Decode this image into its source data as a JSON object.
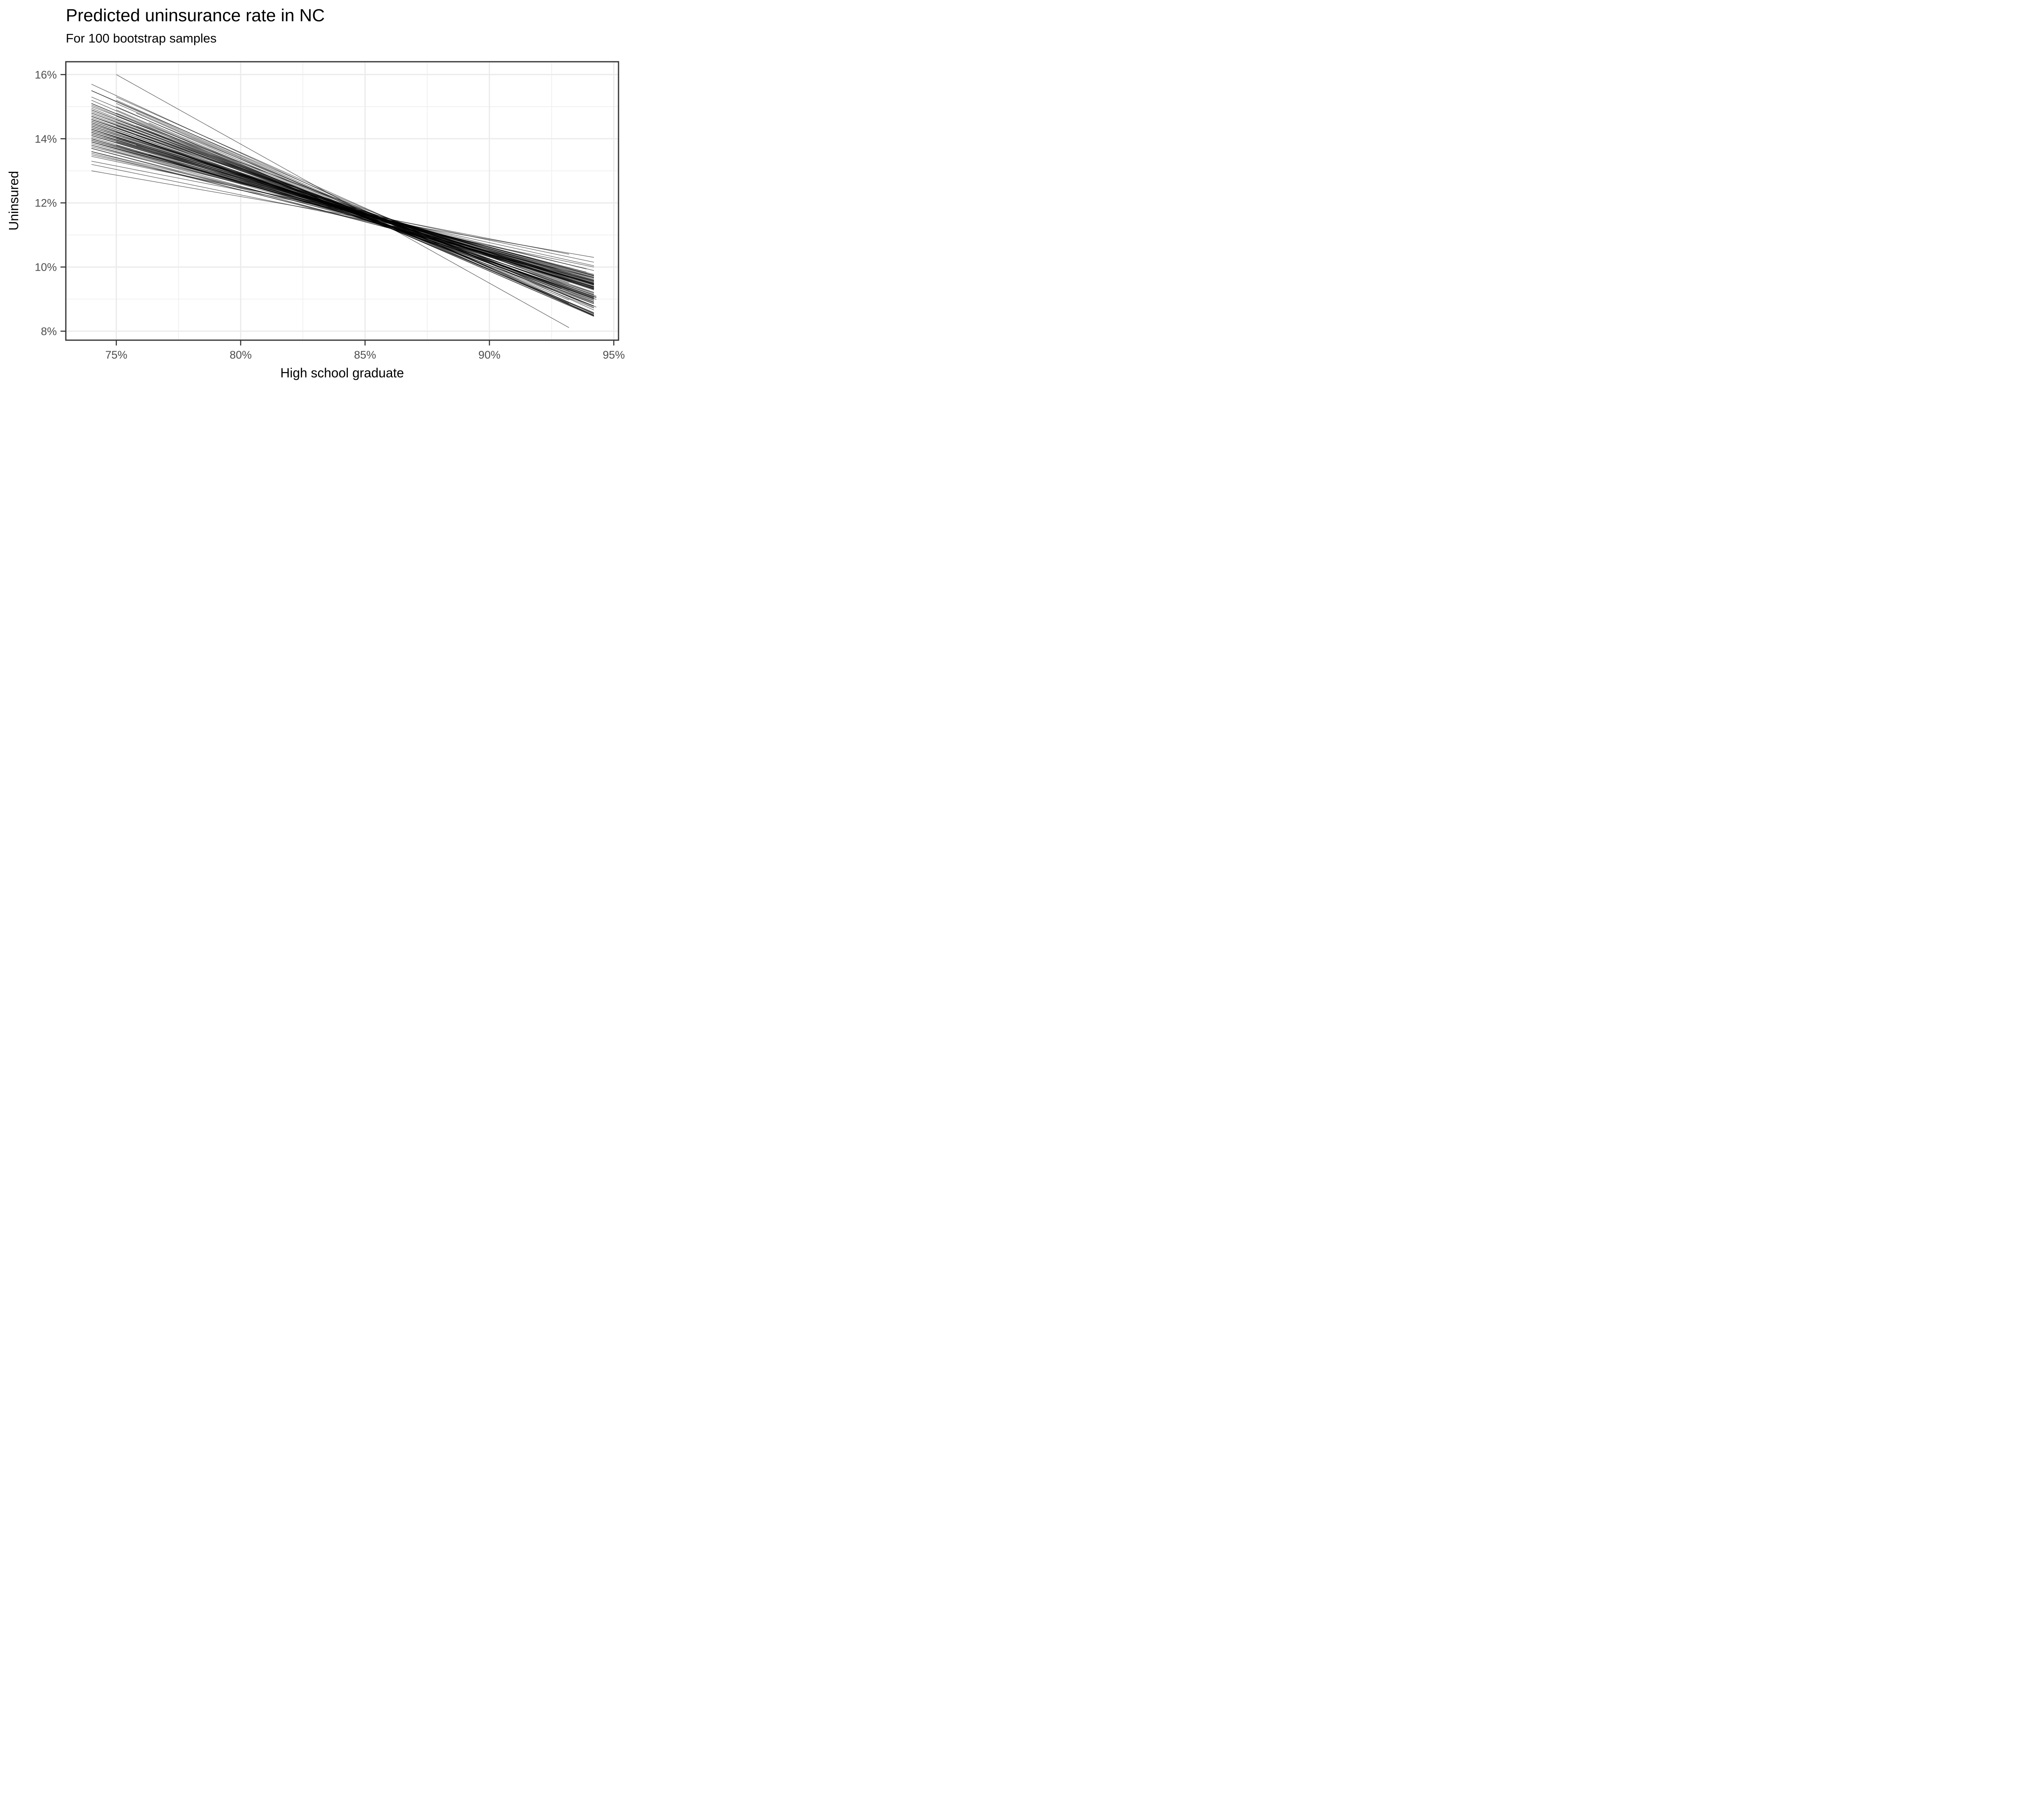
{
  "title": "Predicted uninsurance rate in NC",
  "subtitle": "For 100 bootstrap samples",
  "chart_data": {
    "type": "line",
    "title": "Predicted uninsurance rate in NC",
    "subtitle": "For 100 bootstrap samples",
    "xlabel": "High school graduate",
    "ylabel": "Uninsured",
    "legend": "none",
    "grid": true,
    "units": "percent",
    "xlim": [
      72.97,
      95.19
    ],
    "ylim": [
      7.72,
      16.4
    ],
    "x_ticks": [
      75,
      80,
      85,
      90,
      95
    ],
    "x_tick_labels": [
      "75%",
      "80%",
      "85%",
      "90%",
      "95%"
    ],
    "y_ticks": [
      8,
      10,
      12,
      14,
      16
    ],
    "y_tick_labels": [
      "8%",
      "10%",
      "12%",
      "14%",
      "16%"
    ],
    "x_minor_breaks": [
      77.5,
      82.5,
      87.5,
      92.5
    ],
    "y_minor_breaks": [
      9,
      11,
      13,
      15
    ],
    "n_lines": 100,
    "line_color": "#000000",
    "line_alpha": 0.6,
    "lines_format": [
      "x1_pct",
      "y1_pct",
      "x2_pct",
      "y2_pct"
    ],
    "lines": [
      [
        74,
        14.2,
        94.2,
        9.4
      ],
      [
        75,
        14.8,
        94.2,
        8.92
      ],
      [
        74,
        13.8,
        94.2,
        9.5
      ],
      [
        74,
        15.0,
        94.3,
        9.09
      ],
      [
        75.8,
        14.0,
        94.2,
        9.13
      ],
      [
        74,
        14.4,
        94.2,
        9.31
      ],
      [
        74,
        13.6,
        94.2,
        9.57
      ],
      [
        74,
        14.7,
        93.2,
        9.5
      ],
      [
        74,
        14.9,
        94.2,
        8.78
      ],
      [
        75,
        14.0,
        94.2,
        9.47
      ],
      [
        74,
        14.3,
        94.2,
        9.33
      ],
      [
        74,
        13.9,
        94.2,
        9.74
      ],
      [
        76.3,
        14.5,
        94.2,
        8.51
      ],
      [
        74,
        14.6,
        94.2,
        9.36
      ],
      [
        74,
        14.1,
        94.2,
        9.38
      ],
      [
        75,
        15.2,
        94.2,
        8.54
      ],
      [
        74,
        13.7,
        94.2,
        9.5
      ],
      [
        74,
        14.45,
        94.2,
        9.39
      ],
      [
        74,
        13.9,
        93.2,
        9.69
      ],
      [
        74,
        14.25,
        94.2,
        9.45
      ],
      [
        75,
        16.0,
        93.2,
        8.11
      ],
      [
        74,
        14.0,
        94.2,
        9.45
      ],
      [
        74,
        14.8,
        94.3,
        9.04
      ],
      [
        75,
        14.2,
        92.9,
        9.34
      ],
      [
        74,
        13.5,
        94.2,
        10.04
      ],
      [
        74,
        14.55,
        94.2,
        9.02
      ],
      [
        75,
        14.4,
        94.2,
        9.17
      ],
      [
        74,
        14.15,
        94.2,
        9.43
      ],
      [
        74,
        15.3,
        94.2,
        8.78
      ],
      [
        75.8,
        13.6,
        94.2,
        9.37
      ],
      [
        74,
        14.35,
        94.2,
        9.53
      ],
      [
        74,
        13.95,
        94.2,
        9.48
      ],
      [
        75,
        14.6,
        94.2,
        8.99
      ],
      [
        74,
        14.5,
        94.2,
        8.96
      ],
      [
        74,
        13.8,
        93.9,
        9.84
      ],
      [
        74,
        15.1,
        93.2,
        8.97
      ],
      [
        74,
        14.2,
        94.2,
        9.48
      ],
      [
        74,
        14.7,
        94.3,
        9.06
      ],
      [
        75,
        13.8,
        94.2,
        9.67
      ],
      [
        74,
        14.05,
        94.2,
        9.33
      ],
      [
        74,
        15.5,
        94.2,
        8.74
      ],
      [
        74,
        13.2,
        94.2,
        10.0
      ],
      [
        75.8,
        14.4,
        94.2,
        8.96
      ],
      [
        74,
        14.3,
        94.2,
        9.09
      ],
      [
        74,
        13.9,
        94.2,
        9.77
      ],
      [
        75,
        15.0,
        94.2,
        8.5
      ],
      [
        74,
        14.6,
        94.2,
        9.21
      ],
      [
        74,
        14.0,
        94.2,
        9.53
      ],
      [
        74,
        14.3,
        93.2,
        9.71
      ],
      [
        74,
        14.85,
        94.2,
        8.79
      ],
      [
        74,
        13.75,
        93.9,
        9.94
      ],
      [
        75,
        14.2,
        94.2,
        9.14
      ],
      [
        74,
        14.4,
        94.2,
        9.32
      ],
      [
        74,
        15.1,
        94.2,
        8.55
      ],
      [
        76.3,
        13.5,
        94.2,
        9.73
      ],
      [
        74,
        14.5,
        94.2,
        9.06
      ],
      [
        74,
        13.6,
        94.2,
        9.89
      ],
      [
        75,
        14.7,
        94.2,
        8.86
      ],
      [
        74,
        14.1,
        94.2,
        9.6
      ],
      [
        74,
        14.9,
        94.3,
        8.75
      ],
      [
        74,
        13.3,
        93.2,
        10.4
      ],
      [
        75.8,
        14.8,
        94.2,
        8.49
      ],
      [
        74,
        14.2,
        94.2,
        9.45
      ],
      [
        74,
        14.65,
        94.2,
        8.85
      ],
      [
        75,
        13.9,
        94.2,
        9.63
      ],
      [
        74,
        14.75,
        94.2,
        8.89
      ],
      [
        74,
        13.85,
        94.2,
        9.72
      ],
      [
        74,
        15.5,
        93.2,
        8.86
      ],
      [
        74,
        14.3,
        94.2,
        9.46
      ],
      [
        74,
        14.0,
        94.2,
        9.37
      ],
      [
        75,
        15.3,
        94.2,
        8.66
      ],
      [
        74,
        13.7,
        94.2,
        9.66
      ],
      [
        74,
        14.45,
        94.2,
        9.28
      ],
      [
        74,
        15.2,
        94.2,
        8.48
      ],
      [
        75.8,
        14.1,
        94.2,
        9.32
      ],
      [
        74,
        14.55,
        94.2,
        9.03
      ],
      [
        74,
        13.0,
        94.2,
        10.3
      ],
      [
        75,
        14.5,
        94.2,
        9.01
      ],
      [
        74,
        14.15,
        94.2,
        9.57
      ],
      [
        74,
        14.95,
        94.2,
        8.72
      ],
      [
        74,
        13.45,
        94.2,
        10.15
      ],
      [
        74,
        14.7,
        93.2,
        9.26
      ],
      [
        74,
        14.35,
        94.2,
        9.35
      ],
      [
        75,
        14.9,
        94.2,
        8.46
      ],
      [
        74,
        13.95,
        94.2,
        9.74
      ],
      [
        74,
        14.6,
        94.3,
        8.99
      ],
      [
        74,
        14.1,
        94.2,
        9.55
      ],
      [
        75,
        14.6,
        92.9,
        9.32
      ],
      [
        74,
        14.25,
        94.2,
        9.5
      ],
      [
        74,
        13.55,
        94.2,
        9.67
      ],
      [
        75,
        14.05,
        94.2,
        9.59
      ],
      [
        74,
        14.8,
        94.2,
        8.9
      ],
      [
        74,
        14.4,
        94.2,
        9.3
      ],
      [
        74,
        15.05,
        94.2,
        8.58
      ],
      [
        75.8,
        13.8,
        94.2,
        9.57
      ],
      [
        74,
        14.5,
        94.2,
        9.05
      ],
      [
        74,
        13.9,
        94.2,
        9.69
      ],
      [
        75,
        15.1,
        94.2,
        8.56
      ],
      [
        74,
        14.2,
        94.2,
        9.2
      ],
      [
        74,
        15.7,
        94.2,
        8.47
      ]
    ]
  },
  "colors": {
    "background": "#FFFFFF",
    "panel_background": "#FFFFFF",
    "grid_major": "#EBEBEB",
    "grid_minor": "#EFEFEF",
    "panel_border": "#333333",
    "tick_mark": "#333333",
    "tick_label": "#4D4D4D",
    "title_text": "#000000",
    "axis_title_text": "#000000"
  }
}
